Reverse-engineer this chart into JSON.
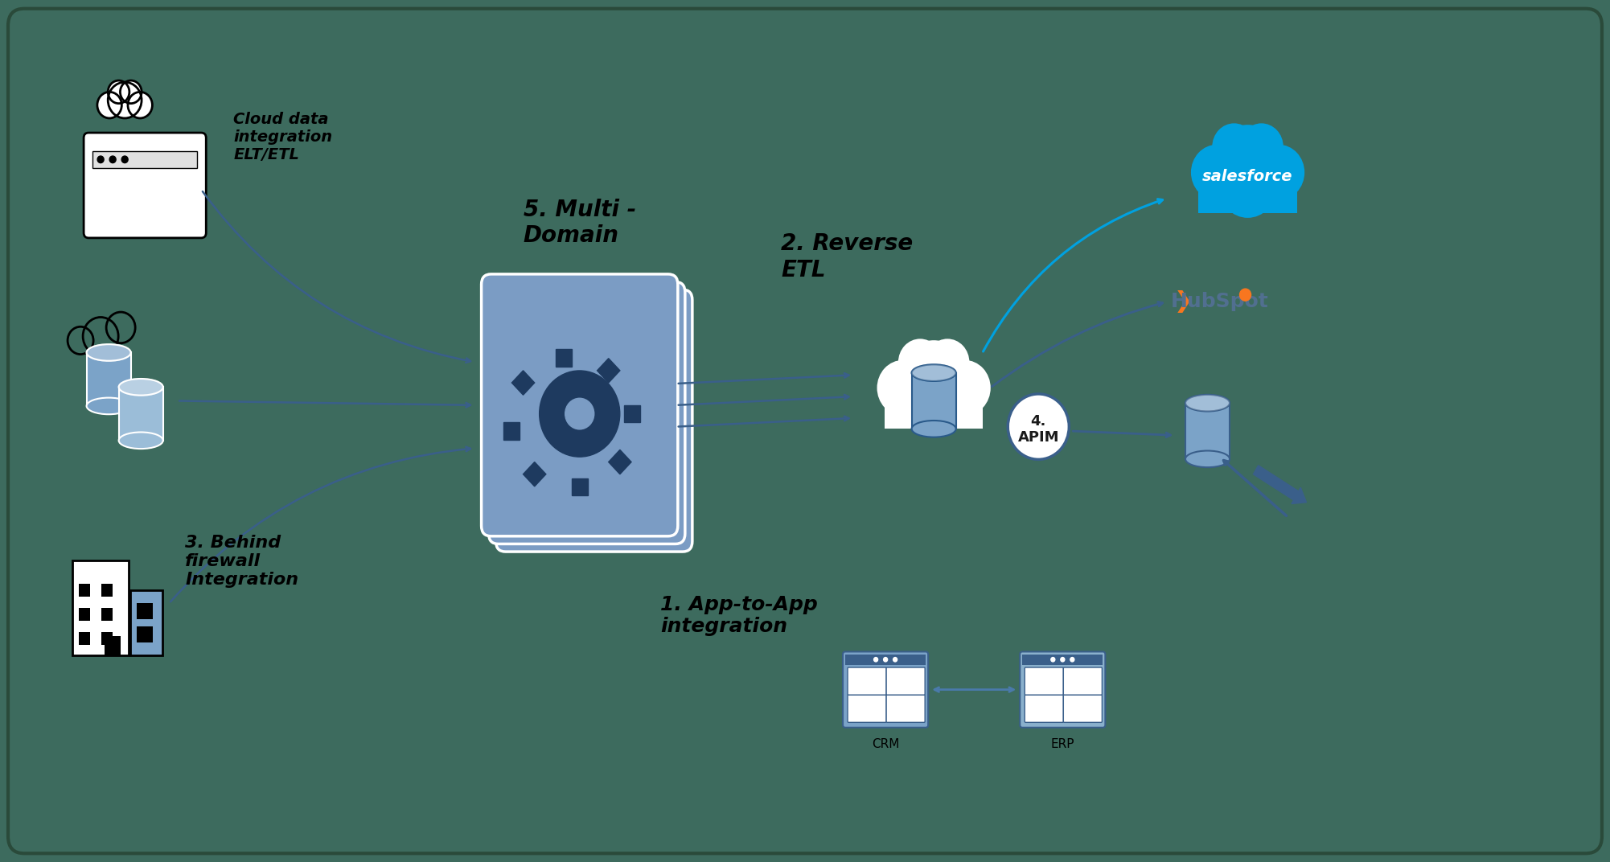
{
  "bg_color": "#3d6b5e",
  "title": "",
  "labels": {
    "cloud_elt": "Cloud data\nintegration\nELT/ETL",
    "multi_domain": "5. Multi -\nDomain",
    "reverse_etl": "2. Reverse\nETL",
    "behind_firewall": "3. Behind\nfirewall\nIntegration",
    "app_to_app": "1. App-to-App\nintegration",
    "apim": "4.\nAPIM",
    "crm": "CRM",
    "erp": "ERP",
    "salesforce": "salesforce",
    "hubspot": "HubSpot"
  },
  "salesforce_color": "#00a1e0",
  "hubspot_orange": "#f8761f",
  "hubspot_gray": "#516f90",
  "platform_blue": "#7b9cc4",
  "platform_dark": "#1e3a5f",
  "arrow_color": "#3a5f8a",
  "db_blue": "#7ba3c8",
  "apim_circle_color": "#f0f0f0",
  "text_color": "#1a1a1a"
}
